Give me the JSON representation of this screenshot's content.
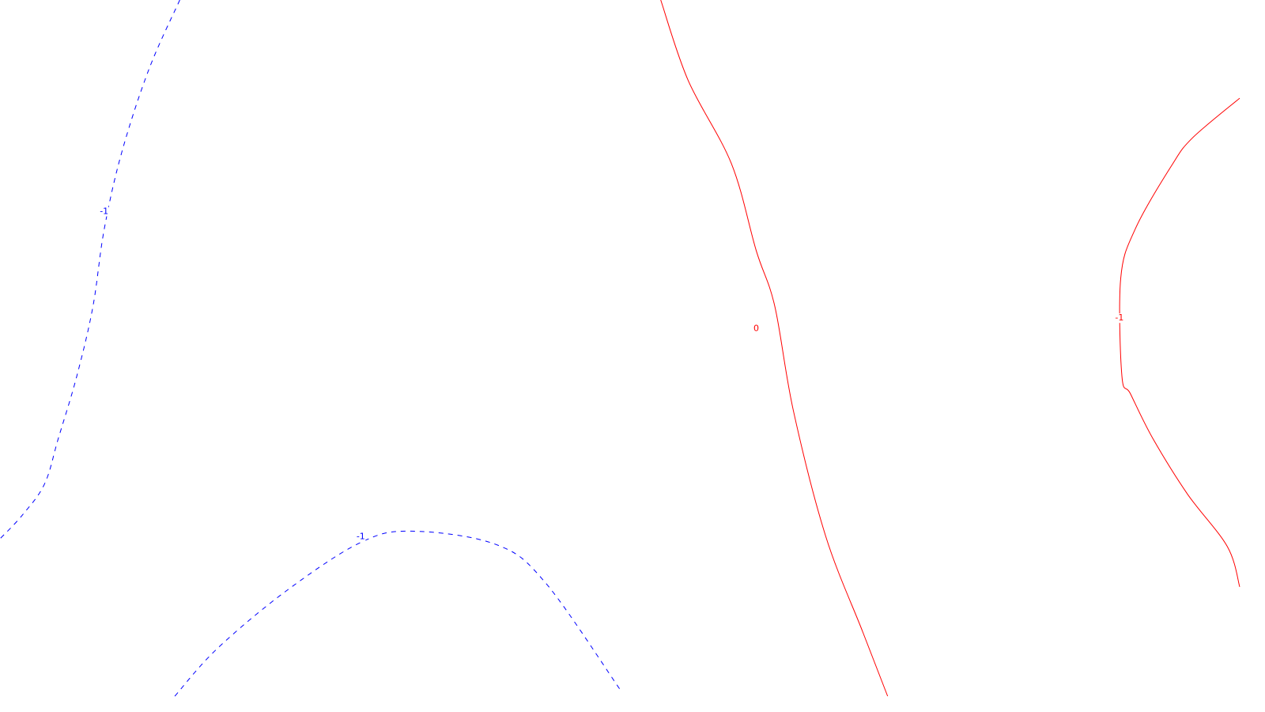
{
  "chart_data": {
    "type": "contour",
    "title": "",
    "xlabel": "",
    "ylabel": "",
    "grid": false,
    "legend": "none",
    "contours": [
      {
        "name": "contour-neg-a",
        "level": "-1",
        "label": "-1",
        "color": "#0000ff",
        "style": "dashed",
        "points": [
          [
            0.145,
            1.0
          ],
          [
            0.12,
            0.9
          ],
          [
            0.098,
            0.78
          ],
          [
            0.084,
            0.67
          ],
          [
            0.075,
            0.56
          ],
          [
            0.062,
            0.46
          ],
          [
            0.047,
            0.37
          ],
          [
            0.036,
            0.305
          ],
          [
            0.018,
            0.26
          ],
          [
            0.0,
            0.226
          ]
        ],
        "label_at": [
          0.084,
          0.696
        ]
      },
      {
        "name": "contour-neg-b",
        "level": "-1",
        "label": "-1",
        "color": "#0000ff",
        "style": "dashed",
        "points": [
          [
            0.141,
            0.0
          ],
          [
            0.175,
            0.068
          ],
          [
            0.23,
            0.15
          ],
          [
            0.29,
            0.22
          ],
          [
            0.332,
            0.237
          ],
          [
            0.4,
            0.218
          ],
          [
            0.44,
            0.163
          ],
          [
            0.5,
            0.01
          ]
        ],
        "label_at": [
          0.291,
          0.229
        ]
      },
      {
        "name": "contour-zero",
        "level": "0",
        "label": "0",
        "color": "#ff0000",
        "style": "solid",
        "points": [
          [
            0.533,
            1.0
          ],
          [
            0.555,
            0.885
          ],
          [
            0.59,
            0.765
          ],
          [
            0.61,
            0.64
          ],
          [
            0.625,
            0.56
          ],
          [
            0.64,
            0.41
          ],
          [
            0.666,
            0.23
          ],
          [
            0.696,
            0.092
          ],
          [
            0.716,
            0.0
          ]
        ],
        "label_at": [
          0.61,
          0.528
        ]
      },
      {
        "name": "contour-neg-c",
        "level": "-1",
        "label": "-1",
        "color": "#ff0000",
        "style": "solid",
        "points": [
          [
            1.0,
            0.859
          ],
          [
            0.962,
            0.802
          ],
          [
            0.945,
            0.762
          ],
          [
            0.916,
            0.672
          ],
          [
            0.904,
            0.6
          ],
          [
            0.905,
            0.46
          ],
          [
            0.912,
            0.434
          ],
          [
            0.93,
            0.37
          ],
          [
            0.958,
            0.29
          ],
          [
            0.99,
            0.215
          ],
          [
            1.0,
            0.157
          ]
        ],
        "label_at": [
          0.903,
          0.543
        ]
      }
    ]
  }
}
